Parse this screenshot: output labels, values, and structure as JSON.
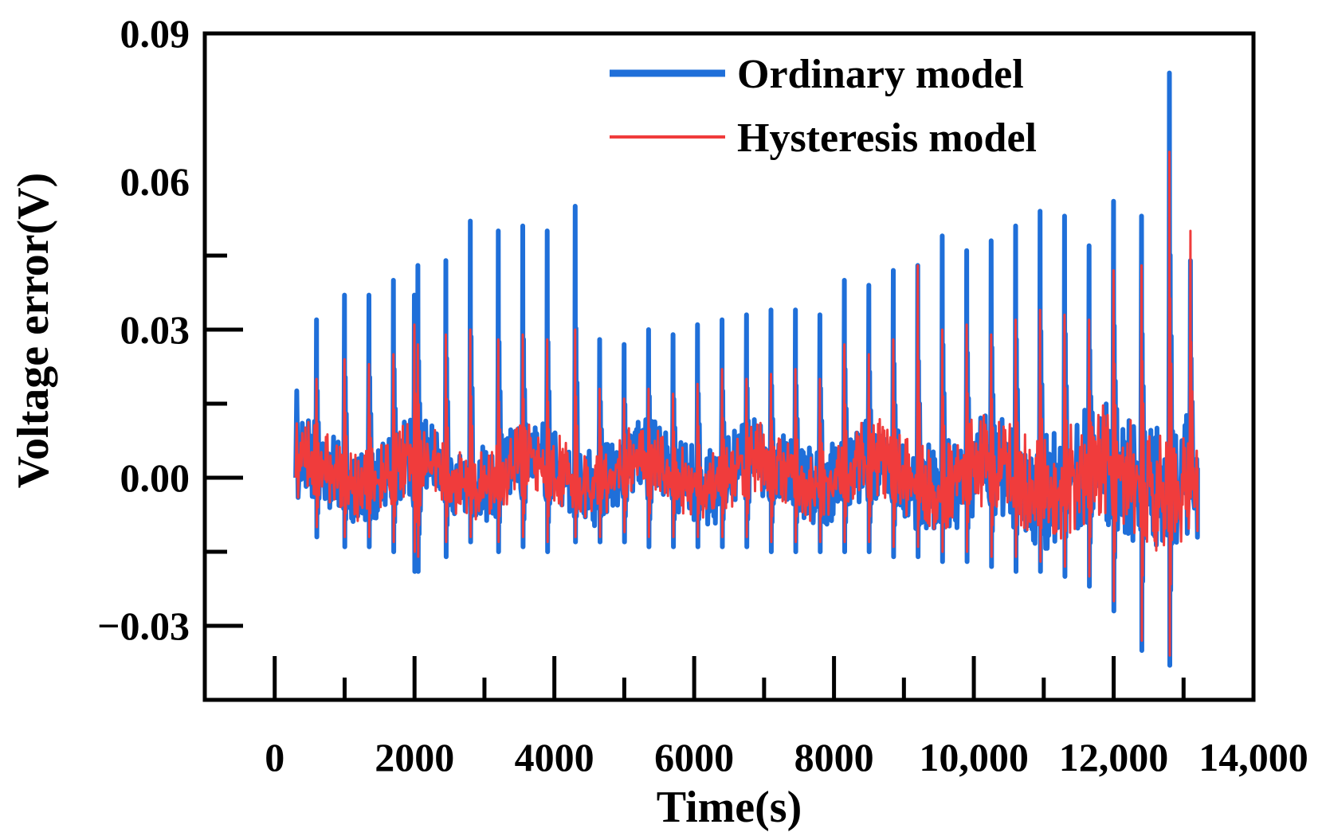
{
  "chart_data": {
    "type": "line",
    "title": "",
    "xlabel": "Time(s)",
    "ylabel": "Voltage error(V)",
    "xlim": [
      -1000,
      14000
    ],
    "ylim": [
      -0.045,
      0.09
    ],
    "x_ticks": [
      0,
      2000,
      4000,
      6000,
      8000,
      10000,
      12000,
      14000
    ],
    "x_tick_labels": [
      "0",
      "2000",
      "4000",
      "6000",
      "8000",
      "10,000",
      "12,000",
      "14,000"
    ],
    "y_ticks": [
      -0.03,
      0.0,
      0.03,
      0.06,
      0.09
    ],
    "y_tick_labels": [
      "−0.03",
      "0.00",
      "0.03",
      "0.06",
      "0.09"
    ],
    "legend_position": "top-right",
    "grid": false,
    "series": [
      {
        "name": "Ordinary model",
        "color": "#1f6fd9",
        "pulse_times": [
          600,
          1000,
          1350,
          1700,
          2000,
          2050,
          2450,
          2800,
          3200,
          3550,
          3900,
          4300,
          4650,
          5000,
          5350,
          5700,
          6050,
          6400,
          6750,
          7100,
          7450,
          7800,
          8150,
          8500,
          8850,
          9200,
          9550,
          9900,
          10250,
          10600,
          10950,
          11300,
          11650,
          12000,
          12400,
          12800,
          13100
        ],
        "pulse_peaks": [
          0.032,
          0.037,
          0.037,
          0.04,
          0.037,
          0.043,
          0.044,
          0.052,
          0.05,
          0.051,
          0.05,
          0.055,
          0.028,
          0.027,
          0.03,
          0.029,
          0.031,
          0.032,
          0.033,
          0.034,
          0.034,
          0.033,
          0.04,
          0.039,
          0.042,
          0.043,
          0.049,
          0.046,
          0.048,
          0.051,
          0.054,
          0.053,
          0.047,
          0.056,
          0.053,
          0.082,
          0.044
        ],
        "pulse_troughs": [
          -0.012,
          -0.014,
          -0.014,
          -0.015,
          -0.019,
          -0.019,
          -0.016,
          -0.013,
          -0.015,
          -0.014,
          -0.015,
          -0.013,
          -0.013,
          -0.013,
          -0.014,
          -0.014,
          -0.014,
          -0.014,
          -0.014,
          -0.015,
          -0.015,
          -0.015,
          -0.015,
          -0.015,
          -0.016,
          -0.016,
          -0.017,
          -0.017,
          -0.018,
          -0.019,
          -0.019,
          -0.02,
          -0.022,
          -0.027,
          -0.035,
          -0.038,
          -0.004
        ]
      },
      {
        "name": "Hysteresis model",
        "color": "#f03c3c",
        "pulse_times": [
          600,
          1000,
          1350,
          1700,
          2000,
          2050,
          2450,
          2800,
          3200,
          3550,
          3900,
          4300,
          4650,
          5000,
          5350,
          5700,
          6050,
          6400,
          6750,
          7100,
          7450,
          7800,
          8150,
          8500,
          8850,
          9200,
          9550,
          9900,
          10250,
          10600,
          10950,
          11300,
          11650,
          12000,
          12400,
          12800,
          13100
        ],
        "pulse_peaks": [
          0.02,
          0.024,
          0.023,
          0.025,
          0.031,
          0.027,
          0.029,
          0.03,
          0.028,
          0.029,
          0.028,
          0.03,
          0.018,
          0.016,
          0.018,
          0.017,
          0.019,
          0.022,
          0.02,
          0.021,
          0.022,
          0.02,
          0.027,
          0.025,
          0.028,
          0.043,
          0.03,
          0.031,
          0.029,
          0.032,
          0.034,
          0.033,
          0.032,
          0.042,
          0.043,
          0.066,
          0.05
        ],
        "pulse_troughs": [
          -0.01,
          -0.012,
          -0.012,
          -0.013,
          -0.015,
          -0.016,
          -0.013,
          -0.012,
          -0.013,
          -0.012,
          -0.013,
          -0.012,
          -0.012,
          -0.011,
          -0.012,
          -0.012,
          -0.012,
          -0.012,
          -0.012,
          -0.013,
          -0.013,
          -0.013,
          -0.013,
          -0.013,
          -0.014,
          -0.014,
          -0.015,
          -0.015,
          -0.016,
          -0.016,
          -0.017,
          -0.018,
          -0.02,
          -0.025,
          -0.033,
          -0.036,
          -0.004
        ]
      }
    ],
    "start_time": 300,
    "end_time": 13200
  }
}
